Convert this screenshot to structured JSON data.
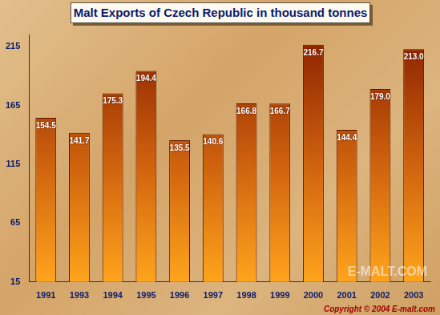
{
  "chart_data": {
    "type": "bar",
    "title": "Malt Exports of Czech Republic in thousand tonnes",
    "categories": [
      "1991",
      "1993",
      "1994",
      "1995",
      "1996",
      "1997",
      "1998",
      "1999",
      "2000",
      "2001",
      "2002",
      "2003"
    ],
    "values": [
      154.5,
      141.7,
      175.3,
      194.4,
      135.5,
      140.6,
      166.8,
      166.7,
      216.7,
      144.4,
      179.0,
      213.0
    ],
    "value_labels": [
      "154.5",
      "141.7",
      "175.3",
      "194.4",
      "135.5",
      "140.6",
      "166.8",
      "166.7",
      "216.7",
      "144.4",
      "179.0",
      "213.0"
    ],
    "color": "#8b2000",
    "ylim": [
      15,
      225
    ],
    "yticks": [
      15,
      65,
      115,
      165,
      215
    ],
    "grid": false,
    "data_labels": true,
    "annotations": [
      "E-MALT.COM",
      "Copyright © 2004 E-malt.com"
    ]
  }
}
